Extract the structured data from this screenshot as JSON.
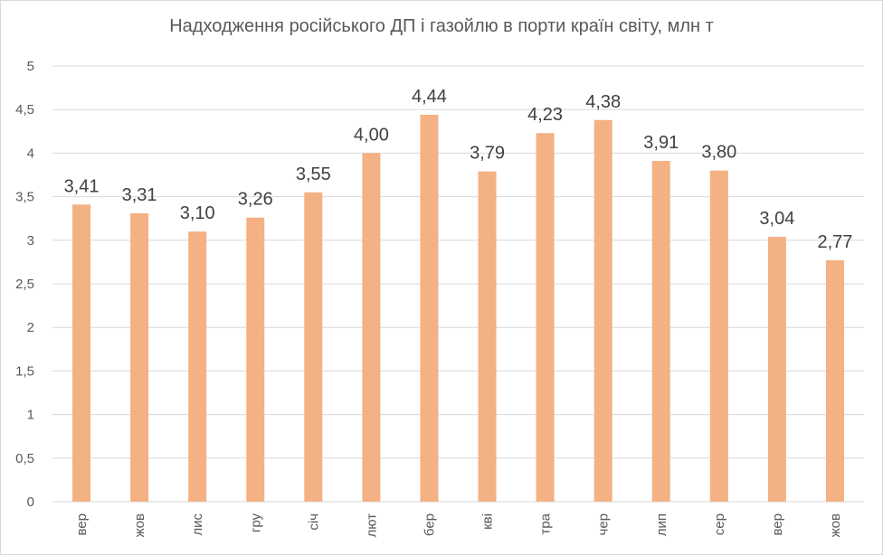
{
  "chart_data": {
    "type": "bar",
    "title": "Надходження російського ДП і газойлю в порти країн світу, млн т",
    "xlabel": "",
    "ylabel": "",
    "ylim": [
      0,
      5
    ],
    "yticks": [
      "0",
      "0,5",
      "1",
      "1,5",
      "2",
      "2,5",
      "3",
      "3,5",
      "4",
      "4,5",
      "5"
    ],
    "grid": true,
    "legend": "none",
    "bar_color": "#F4B183",
    "categories": [
      "вер",
      "жов",
      "лис",
      "гру",
      "січ",
      "лют",
      "бер",
      "кві",
      "тра",
      "чер",
      "лип",
      "сер",
      "вер",
      "жов"
    ],
    "values": [
      3.41,
      3.31,
      3.1,
      3.26,
      3.55,
      4.0,
      4.44,
      3.79,
      4.23,
      4.38,
      3.91,
      3.8,
      3.04,
      2.77
    ],
    "value_labels": [
      "3,41",
      "3,31",
      "3,10",
      "3,26",
      "3,55",
      "4,00",
      "4,44",
      "3,79",
      "4,23",
      "4,38",
      "3,91",
      "3,80",
      "3,04",
      "2,77"
    ]
  }
}
